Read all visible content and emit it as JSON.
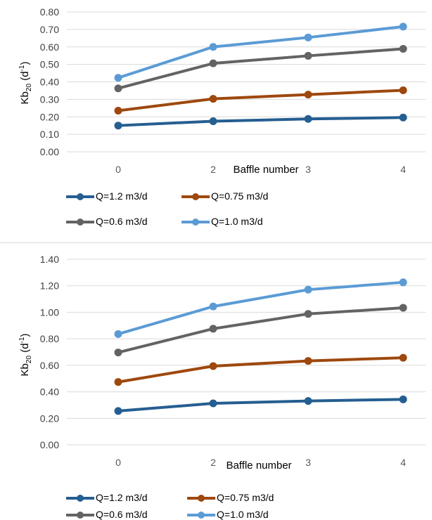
{
  "chart_data": [
    {
      "type": "line",
      "ylabel": "Kb20 (d-1)",
      "ylabel_main": "Kb",
      "ylabel_sub": "20",
      "ylabel_unit_open": " (d",
      "ylabel_sup": "-1",
      "ylabel_unit_close": ")",
      "xlabel": "Baffle number",
      "x": [
        0,
        2,
        3,
        4
      ],
      "x_tick_labels": [
        "0",
        "2",
        "3",
        "4"
      ],
      "y_tick_labels": [
        "0.00",
        "0.10",
        "0.20",
        "0.30",
        "0.40",
        "0.50",
        "0.60",
        "0.70",
        "0.80"
      ],
      "ylim": [
        0,
        0.8
      ],
      "grid": true,
      "legend_position": "bottom",
      "series": [
        {
          "name": "Q=1.2 m3/d",
          "values": [
            0.15,
            0.175,
            0.188,
            0.196
          ],
          "color": "#255E91"
        },
        {
          "name": "Q=0.75 m3/d",
          "values": [
            0.235,
            0.303,
            0.327,
            0.352
          ],
          "color": "#9E480E"
        },
        {
          "name": "Q=0.6 m3/d",
          "values": [
            0.363,
            0.506,
            0.549,
            0.589
          ],
          "color": "#636363"
        },
        {
          "name": "Q=1.0 m3/d",
          "values": [
            0.423,
            0.6,
            0.654,
            0.716
          ],
          "color": "#5B9BD5"
        }
      ]
    },
    {
      "type": "line",
      "ylabel": "Kb20 (d-1)",
      "ylabel_main": "Kb",
      "ylabel_sub": "20",
      "ylabel_unit_open": " (d",
      "ylabel_sup": "-1",
      "ylabel_unit_close": ")",
      "xlabel": "Baffle number",
      "x": [
        0,
        2,
        3,
        4
      ],
      "x_tick_labels": [
        "0",
        "2",
        "3",
        "4"
      ],
      "y_tick_labels": [
        "0.00",
        "0.20",
        "0.40",
        "0.60",
        "0.80",
        "1.00",
        "1.20",
        "1.40"
      ],
      "ylim": [
        0,
        1.4
      ],
      "grid": true,
      "legend_position": "bottom",
      "series": [
        {
          "name": "Q=1.2 m3/d",
          "values": [
            0.255,
            0.313,
            0.331,
            0.343
          ],
          "color": "#255E91"
        },
        {
          "name": "Q=0.75 m3/d",
          "values": [
            0.474,
            0.594,
            0.633,
            0.657
          ],
          "color": "#9E480E"
        },
        {
          "name": "Q=0.6 m3/d",
          "values": [
            0.697,
            0.876,
            0.988,
            1.034
          ],
          "color": "#636363"
        },
        {
          "name": "Q=1.0 m3/d",
          "values": [
            0.836,
            1.044,
            1.171,
            1.226
          ],
          "color": "#5B9BD5"
        }
      ]
    }
  ]
}
